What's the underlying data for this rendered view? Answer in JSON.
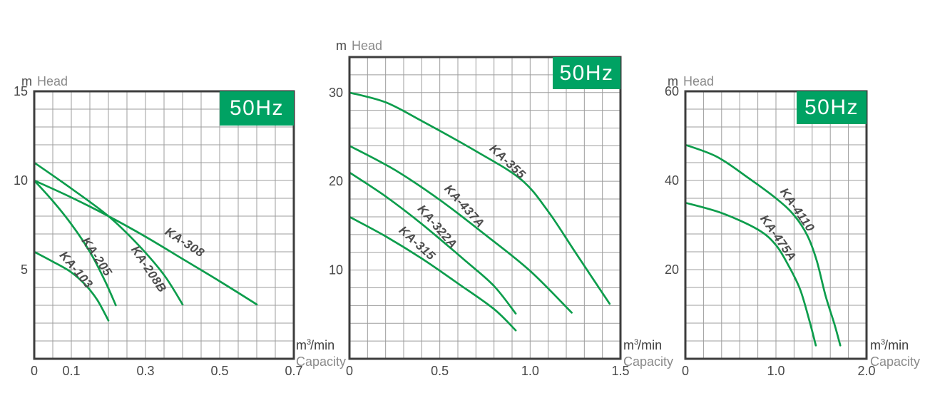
{
  "styles": {
    "badge_bg": "#00a263",
    "badge_text_color": "#ffffff",
    "curve_color": "#0d9d4c",
    "grid_color": "#9d9d9d",
    "border_color": "#3d3d3d",
    "tick_text_color": "#474747",
    "muted_text_color": "#8a8a8a",
    "curve_label_color": "#4d4d4d"
  },
  "chart_data": [
    {
      "type": "line",
      "frequency_badge": "50Hz",
      "y_unit": "m",
      "y_axis_title": "Head",
      "x_unit_base": "m",
      "x_unit_sup": "3",
      "x_unit_rest": "/min",
      "x_axis_title": "Capacity",
      "xlim": [
        0,
        0.7
      ],
      "ylim": [
        0,
        15
      ],
      "x_grid_step": 0.05,
      "y_grid_step": 1,
      "x_ticks": [
        [
          0,
          "0"
        ],
        [
          0.1,
          "0.1"
        ],
        [
          0.3,
          "0.3"
        ],
        [
          0.5,
          "0.5"
        ],
        [
          0.7,
          "0.7"
        ]
      ],
      "y_ticks": [
        [
          5,
          "5"
        ],
        [
          10,
          "10"
        ],
        [
          15,
          "15"
        ]
      ],
      "grid": true,
      "legend_position": "on-curve",
      "series": [
        {
          "name": "KA-103",
          "points": [
            [
              0,
              6
            ],
            [
              0.05,
              5.45
            ],
            [
              0.1,
              4.85
            ],
            [
              0.14,
              4.1
            ],
            [
              0.17,
              3.3
            ],
            [
              0.2,
              2.15
            ]
          ],
          "label": {
            "x": 0.105,
            "y": 4.85,
            "angle": 50
          }
        },
        {
          "name": "KA-205",
          "points": [
            [
              0,
              10
            ],
            [
              0.05,
              8.85
            ],
            [
              0.1,
              7.55
            ],
            [
              0.15,
              6.0
            ],
            [
              0.19,
              4.4
            ],
            [
              0.22,
              3.0
            ]
          ],
          "label": {
            "x": 0.16,
            "y": 5.6,
            "angle": 56
          }
        },
        {
          "name": "KA-208B",
          "points": [
            [
              0,
              11
            ],
            [
              0.1,
              9.55
            ],
            [
              0.2,
              8.0
            ],
            [
              0.28,
              6.4
            ],
            [
              0.35,
              4.7
            ],
            [
              0.4,
              3.05
            ]
          ],
          "label": {
            "x": 0.3,
            "y": 4.9,
            "angle": 56
          }
        },
        {
          "name": "KA-308",
          "points": [
            [
              0,
              10
            ],
            [
              0.1,
              9.05
            ],
            [
              0.2,
              8.0
            ],
            [
              0.3,
              6.85
            ],
            [
              0.4,
              5.6
            ],
            [
              0.5,
              4.35
            ],
            [
              0.6,
              3.05
            ]
          ],
          "label": {
            "x": 0.4,
            "y": 6.35,
            "angle": 33
          }
        }
      ]
    },
    {
      "type": "line",
      "frequency_badge": "50Hz",
      "y_unit": "m",
      "y_axis_title": "Head",
      "x_unit_base": "m",
      "x_unit_sup": "3",
      "x_unit_rest": "/min",
      "x_axis_title": "Capacity",
      "xlim": [
        0,
        1.5
      ],
      "ylim": [
        0,
        34
      ],
      "x_grid_step": 0.1,
      "y_grid_step": 2,
      "x_ticks": [
        [
          0,
          "0"
        ],
        [
          0.5,
          "0.5"
        ],
        [
          1.0,
          "1.0"
        ],
        [
          1.5,
          "1.5"
        ]
      ],
      "y_ticks": [
        [
          10,
          "10"
        ],
        [
          20,
          "20"
        ],
        [
          30,
          "30"
        ]
      ],
      "grid": true,
      "legend_position": "on-curve",
      "series": [
        {
          "name": "KA-315",
          "points": [
            [
              0,
              16
            ],
            [
              0.2,
              13.8
            ],
            [
              0.4,
              11.3
            ],
            [
              0.6,
              8.5
            ],
            [
              0.8,
              5.6
            ],
            [
              0.92,
              3.2
            ]
          ],
          "label": {
            "x": 0.36,
            "y": 12.7,
            "angle": 42
          }
        },
        {
          "name": "KA-322A",
          "points": [
            [
              0,
              21
            ],
            [
              0.2,
              18.3
            ],
            [
              0.4,
              15.2
            ],
            [
              0.65,
              10.9
            ],
            [
              0.8,
              8.2
            ],
            [
              0.92,
              5.1
            ]
          ],
          "label": {
            "x": 0.47,
            "y": 14.6,
            "angle": 49
          }
        },
        {
          "name": "KA-437A",
          "points": [
            [
              0,
              24
            ],
            [
              0.25,
              21.3
            ],
            [
              0.5,
              17.9
            ],
            [
              0.75,
              14.0
            ],
            [
              1.0,
              9.9
            ],
            [
              1.23,
              5.2
            ]
          ],
          "label": {
            "x": 0.62,
            "y": 16.9,
            "angle": 48
          }
        },
        {
          "name": "KA-355",
          "points": [
            [
              0,
              30
            ],
            [
              0.2,
              28.9
            ],
            [
              0.4,
              26.8
            ],
            [
              0.7,
              23.4
            ],
            [
              0.95,
              20.2
            ],
            [
              1.1,
              16.6
            ],
            [
              1.25,
              12.0
            ],
            [
              1.44,
              6.2
            ]
          ],
          "label": {
            "x": 0.86,
            "y": 21.9,
            "angle": 43
          }
        }
      ]
    },
    {
      "type": "line",
      "frequency_badge": "50Hz",
      "y_unit": "m",
      "y_axis_title": "Head",
      "x_unit_base": "m",
      "x_unit_sup": "3",
      "x_unit_rest": "/min",
      "x_axis_title": "Capacity",
      "xlim": [
        0,
        2.0
      ],
      "ylim": [
        0,
        60
      ],
      "x_grid_step": 0.2,
      "y_grid_step": 4,
      "x_ticks": [
        [
          0,
          "0"
        ],
        [
          1.0,
          "1.0"
        ],
        [
          2.0,
          "2.0"
        ]
      ],
      "y_ticks": [
        [
          20,
          "20"
        ],
        [
          40,
          "40"
        ],
        [
          60,
          "60"
        ]
      ],
      "grid": true,
      "legend_position": "on-curve",
      "series": [
        {
          "name": "KA-475A",
          "points": [
            [
              0,
              35
            ],
            [
              0.4,
              32.7
            ],
            [
              0.8,
              29.0
            ],
            [
              1.0,
              25.5
            ],
            [
              1.15,
              20.5
            ],
            [
              1.27,
              15.4
            ],
            [
              1.37,
              8.5
            ],
            [
              1.44,
              3.0
            ]
          ],
          "label": {
            "x": 0.99,
            "y": 26.6,
            "angle": 55
          }
        },
        {
          "name": "KA-4110",
          "points": [
            [
              0,
              48
            ],
            [
              0.35,
              45.3
            ],
            [
              0.7,
              40.5
            ],
            [
              1.0,
              36.0
            ],
            [
              1.2,
              32.2
            ],
            [
              1.35,
              27.5
            ],
            [
              1.45,
              22.0
            ],
            [
              1.55,
              14.0
            ],
            [
              1.65,
              7.5
            ],
            [
              1.71,
              3.0
            ]
          ],
          "label": {
            "x": 1.2,
            "y": 32.9,
            "angle": 55
          }
        }
      ]
    }
  ]
}
